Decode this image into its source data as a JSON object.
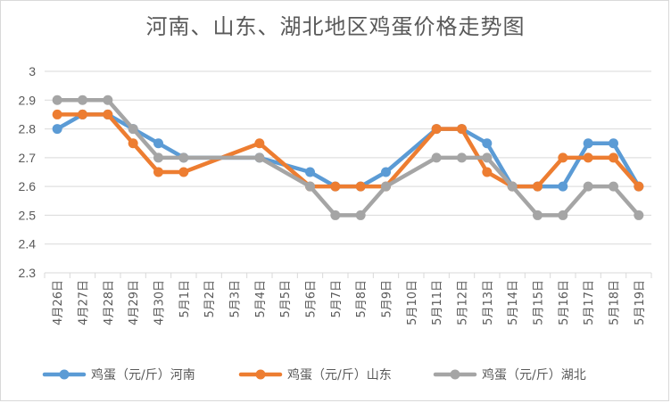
{
  "chart_data": {
    "type": "line",
    "title": "河南、山东、湖北地区鸡蛋价格走势图",
    "xlabel": "",
    "ylabel": "",
    "ylim": [
      2.3,
      3.0
    ],
    "yticks": [
      "2.3",
      "2.4",
      "2.5",
      "2.6",
      "2.7",
      "2.8",
      "2.9",
      "3"
    ],
    "grid": true,
    "legend_position": "bottom",
    "categories": [
      "4月26日",
      "4月27日",
      "4月28日",
      "4月29日",
      "4月30日",
      "5月1日",
      "5月2日",
      "5月3日",
      "5月4日",
      "5月5日",
      "5月6日",
      "5月7日",
      "5月8日",
      "5月9日",
      "5月10日",
      "5月11日",
      "5月12日",
      "5月13日",
      "5月14日",
      "5月15日",
      "5月16日",
      "5月17日",
      "5月18日",
      "5月19日"
    ],
    "series": [
      {
        "name": "鸡蛋（元/斤）河南",
        "color": "#5B9BD5",
        "values": [
          2.8,
          2.85,
          2.85,
          2.8,
          2.75,
          2.7,
          null,
          null,
          2.7,
          null,
          2.65,
          2.6,
          2.6,
          2.65,
          null,
          2.8,
          2.8,
          2.75,
          2.6,
          2.6,
          2.6,
          2.75,
          2.75,
          2.6
        ]
      },
      {
        "name": "鸡蛋（元/斤）山东",
        "color": "#ED7D31",
        "values": [
          2.85,
          2.85,
          2.85,
          2.75,
          2.65,
          2.65,
          null,
          null,
          2.75,
          null,
          2.6,
          2.6,
          2.6,
          2.6,
          null,
          2.8,
          2.8,
          2.65,
          2.6,
          2.6,
          2.7,
          2.7,
          2.7,
          2.6
        ]
      },
      {
        "name": "鸡蛋（元/斤）湖北",
        "color": "#A5A5A5",
        "values": [
          2.9,
          2.9,
          2.9,
          2.8,
          2.7,
          2.7,
          null,
          null,
          2.7,
          null,
          2.6,
          2.5,
          2.5,
          2.6,
          null,
          2.7,
          2.7,
          2.7,
          2.6,
          2.5,
          2.5,
          2.6,
          2.6,
          2.5
        ]
      }
    ]
  }
}
